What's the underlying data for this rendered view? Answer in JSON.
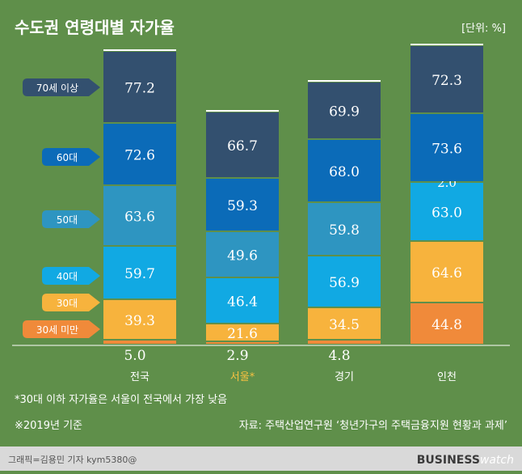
{
  "title": "수도권 연령대별 자가율",
  "unit": "[단위: %]",
  "colors": {
    "background": "#5f8f4a",
    "footer": "#d9d9d9",
    "highlight": "#f6c141",
    "under30": "#f08a3a",
    "s30": "#f7b33d",
    "s40": "#11a9e3",
    "s50": "#2e95c1",
    "s60": "#0b6bb8",
    "s70": "#33506f"
  },
  "footnotes": {
    "note1": "*30대 이하 자가율은 서울이 전국에서 가장 낮음",
    "note2": "※2019년 기준",
    "source": "자료: 주택산업연구원 ‘청년가구의 주택금융지원 현황과 과제’"
  },
  "credit": "그래픽=김용민 기자 kym5380@",
  "brand": {
    "part1": "BUSINESS",
    "part2": "watch"
  },
  "chart_data": {
    "type": "bar",
    "stacked": true,
    "categories": [
      "전국",
      "서울*",
      "경기",
      "인천"
    ],
    "highlight_category": "서울*",
    "series": [
      {
        "name": "30세 미만",
        "color_key": "under30",
        "values": [
          5.0,
          2.9,
          4.8,
          44.8
        ]
      },
      {
        "name": "30대",
        "color_key": "s30",
        "values": [
          39.3,
          21.6,
          34.5,
          64.6
        ]
      },
      {
        "name": "40대",
        "color_key": "s40",
        "values": [
          59.7,
          46.4,
          56.9,
          63.0
        ]
      },
      {
        "name": "50대",
        "color_key": "s50",
        "values": [
          63.6,
          49.6,
          59.8,
          2.0
        ]
      },
      {
        "name": "60대",
        "color_key": "s60",
        "values": [
          72.6,
          59.3,
          68.0,
          73.6
        ]
      },
      {
        "name": "70세 이상",
        "color_key": "s70",
        "values": [
          77.2,
          66.7,
          69.9,
          72.3
        ]
      }
    ],
    "legend_placement": "left",
    "grid": false
  }
}
